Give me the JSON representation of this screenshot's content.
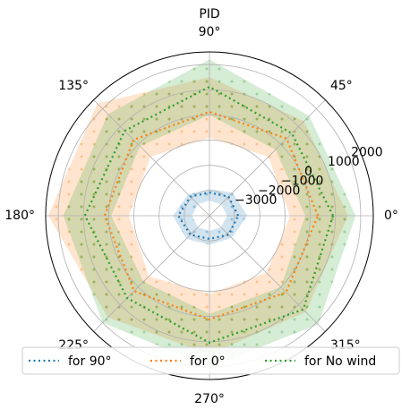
{
  "chart_data": {
    "type": "polar",
    "title": "PID",
    "thetaticks": [
      {
        "value": 0,
        "label": "0°"
      },
      {
        "value": 45,
        "label": "45°"
      },
      {
        "value": 90,
        "label": "90°"
      },
      {
        "value": 135,
        "label": "135°"
      },
      {
        "value": 180,
        "label": "180°"
      },
      {
        "value": 225,
        "label": "225°"
      },
      {
        "value": 270,
        "label": "270°"
      },
      {
        "value": 315,
        "label": "315°"
      }
    ],
    "theta": [
      0,
      45,
      90,
      135,
      180,
      225,
      270,
      315
    ],
    "ylim": [
      -4000,
      2500
    ],
    "yticks": [
      {
        "value": -3000,
        "label": "−3000"
      },
      {
        "value": -2000,
        "label": "−2000"
      },
      {
        "value": -1000,
        "label": "−1000"
      },
      0,
      1000,
      2000
    ],
    "grid": true,
    "series": [
      {
        "name": "for 90°",
        "color": "#1f77b4",
        "values": [
          -2860,
          -2930,
          -3080,
          -2930,
          -2760,
          -2930,
          -3080,
          -2930
        ],
        "low": [
          -3300,
          -3350,
          -3400,
          -3350,
          -3300,
          -3350,
          -3400,
          -3350
        ],
        "high": [
          -2500,
          -2700,
          -2950,
          -2800,
          -2550,
          -2700,
          -2850,
          -2750
        ]
      },
      {
        "name": "for 0°",
        "color": "#ff7f0e",
        "values": [
          300,
          330,
          120,
          260,
          160,
          230,
          120,
          300
        ],
        "low": [
          -800,
          -700,
          -900,
          -700,
          -800,
          -600,
          -900,
          -800
        ],
        "high": [
          1500,
          1300,
          1500,
          2300,
          2400,
          1700,
          1500,
          1400
        ]
      },
      {
        "name": "for No wind",
        "color": "#2ca02c",
        "values": [
          900,
          620,
          1120,
          760,
          940,
          620,
          1040,
          1260
        ],
        "low": [
          -200,
          -300,
          0,
          -100,
          -100,
          -300,
          -100,
          0
        ],
        "high": [
          1800,
          1600,
          2200,
          1700,
          1800,
          2000,
          2000,
          2100
        ]
      }
    ]
  }
}
